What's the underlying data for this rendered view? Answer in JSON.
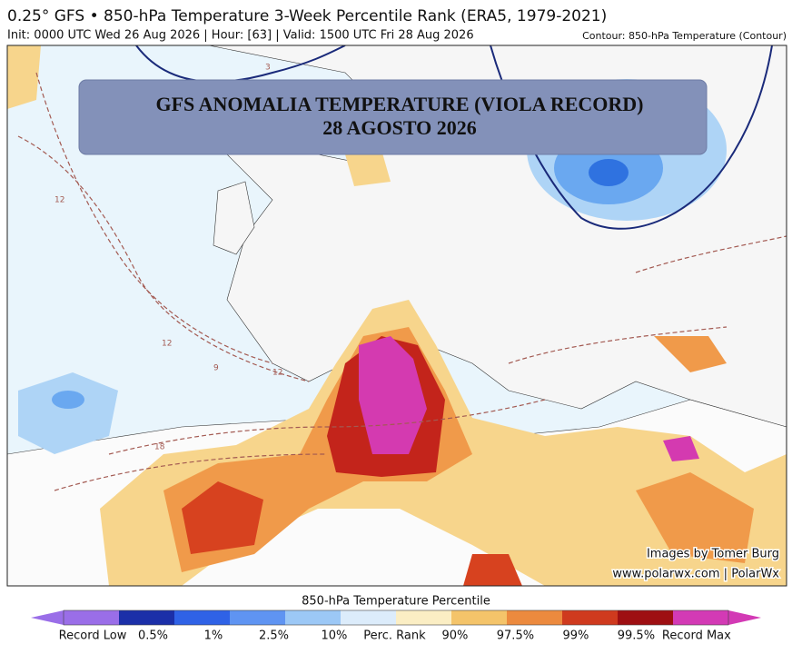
{
  "header": {
    "title": "0.25° GFS • 850-hPa Temperature 3-Week Percentile Rank (ERA5, 1979-2021)",
    "subtitle": "Init: 0000 UTC Wed 26 Aug 2026 | Hour: [63] | Valid: 1500 UTC Fri 28 Aug 2026",
    "contour_note": "Contour: 850-hPa Temperature (Contour)"
  },
  "overlay": {
    "line1": "GFS ANOMALIA  TEMPERATURE (VIOLA RECORD)",
    "line2": "28 AGOSTO 2026"
  },
  "map": {
    "contour_labels": [
      "12",
      "12",
      "12",
      "18",
      "9",
      "3"
    ]
  },
  "credits": {
    "line1": "Images by Tomer Burg",
    "line2": "www.polarwx.com | PolarWx"
  },
  "colorbar": {
    "title": "850-hPa Temperature Percentile",
    "labels": [
      "Record Low",
      "0.5%",
      "1%",
      "2.5%",
      "10%",
      "Perc. Rank",
      "90%",
      "97.5%",
      "99%",
      "99.5%",
      "Record Max"
    ]
  }
}
